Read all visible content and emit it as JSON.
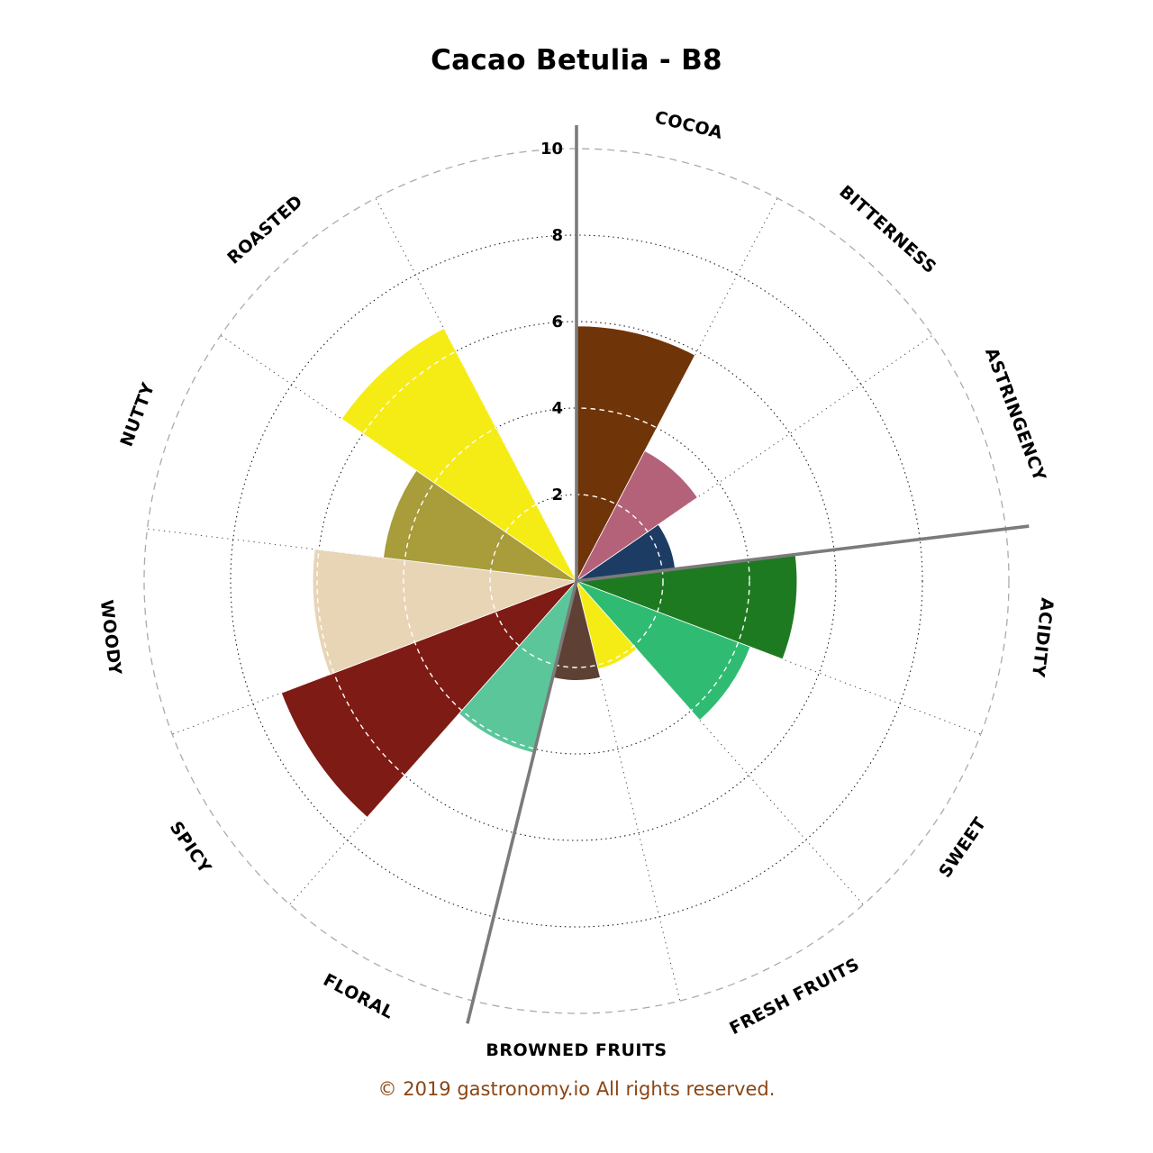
{
  "chart_data": {
    "type": "polar_bar",
    "title": "Cacao Betulia - B8",
    "direction": "clockwise",
    "start_angle_deg": 0,
    "total_sectors": 13,
    "empty_sector_note": "13th sector between ROASTED and COCOA is unlabeled and empty",
    "categories": [
      "COCOA",
      "BITTERNESS",
      "ASTRINGENCY",
      "ACIDITY",
      "SWEET",
      "FRESH FRUITS",
      "BROWNED FRUITS",
      "FLORAL",
      "SPICY",
      "WOODY",
      "NUTTY",
      "ROASTED"
    ],
    "values": [
      5.9,
      3.4,
      2.3,
      5.1,
      4.3,
      2.1,
      2.3,
      4.1,
      7.3,
      6.1,
      4.5,
      6.6
    ],
    "colors": [
      "#6F3408",
      "#B4627A",
      "#1C3C63",
      "#1E7A21",
      "#2FBC72",
      "#F6EC15",
      "#5E4134",
      "#5CC69B",
      "#7E1B15",
      "#E8D5B6",
      "#A89C3B",
      "#F6EC15"
    ],
    "radial_axis": {
      "ticks": [
        2,
        4,
        6,
        8,
        10
      ],
      "max": 10,
      "grid": "dotted"
    },
    "group_divider_angles_deg": [
      0,
      83.08,
      193.85
    ],
    "legend_position": "none"
  },
  "footer": {
    "text": "© 2019 gastronomy.io All rights reserved.",
    "color": "#8B4513"
  },
  "style_colors": {
    "divider_gray": "#7b7b7b",
    "grid_black": "#161616",
    "outer_circle_gray": "#ababab",
    "background": "#ffffff",
    "title_color": "#000000"
  }
}
